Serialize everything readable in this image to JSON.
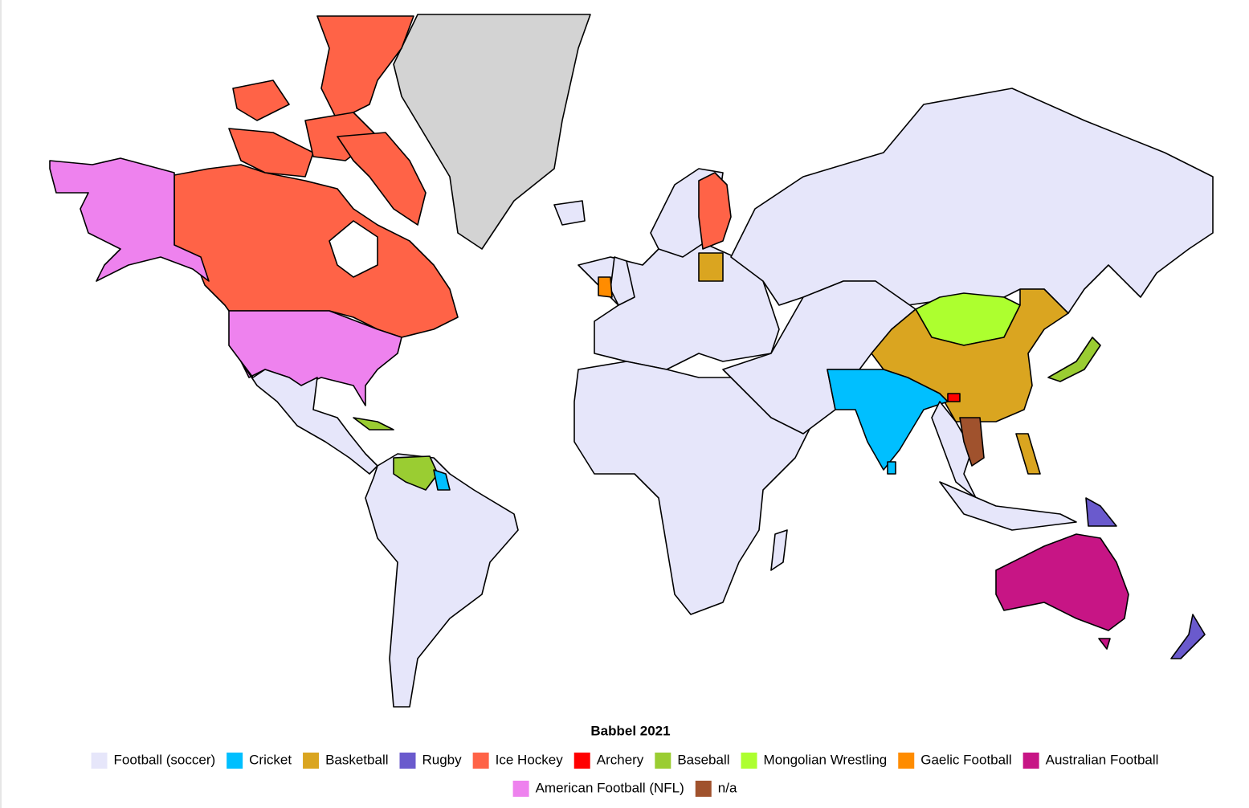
{
  "title": "Babbel 2021",
  "legend": {
    "items": [
      {
        "name": "Football (soccer)",
        "color": "#e6e6fa"
      },
      {
        "name": "Cricket",
        "color": "#00bfff"
      },
      {
        "name": "Basketball",
        "color": "#daa520"
      },
      {
        "name": "Rugby",
        "color": "#6a5acd"
      },
      {
        "name": "Ice Hockey",
        "color": "#ff6347"
      },
      {
        "name": "Archery",
        "color": "#ff0000"
      },
      {
        "name": "Baseball",
        "color": "#9acd32"
      },
      {
        "name": "Mongolian Wrestling",
        "color": "#adff2f"
      },
      {
        "name": "Gaelic Football",
        "color": "#ff8c00"
      },
      {
        "name": "Australian Football",
        "color": "#c71585"
      },
      {
        "name": "American Football (NFL)",
        "color": "#ee82ee"
      },
      {
        "name": "n/a",
        "color": "#a0522d"
      }
    ]
  }
}
